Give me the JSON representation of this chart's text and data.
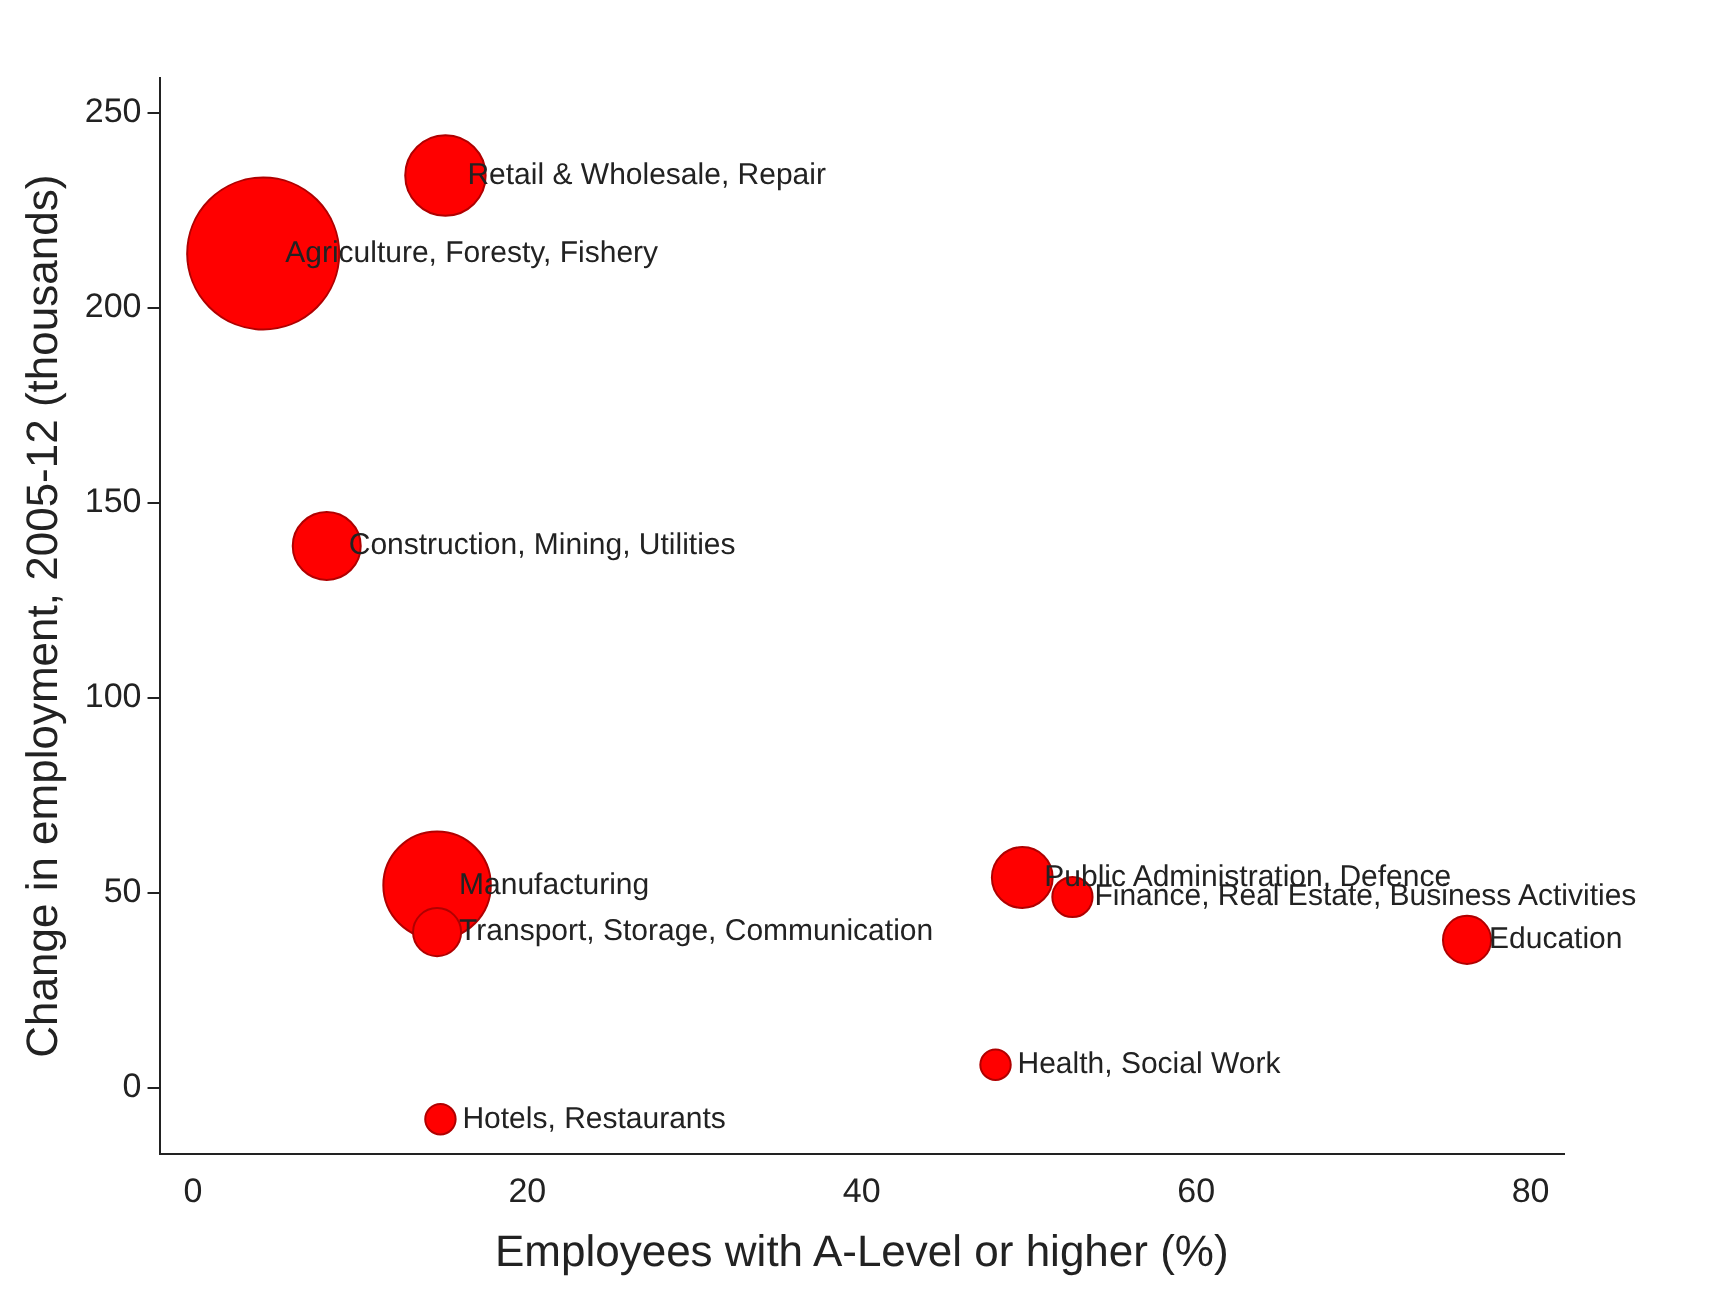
{
  "chart_data": {
    "type": "bubble",
    "xlabel": "Employees with A-Level or higher (%)",
    "ylabel": "Change in employment, 2005-12 (thousands)",
    "x": [
      15.1,
      4.2,
      8.0,
      14.6,
      14.6,
      14.8,
      49.6,
      52.6,
      48.0,
      76.2
    ],
    "series": [
      {
        "color": "#ff0000",
        "values": [
          234,
          214,
          139,
          52,
          40,
          -8,
          54,
          49,
          6,
          38
        ],
        "sizes": [
          0.28,
          1,
          0.2,
          0.5,
          0.1,
          0.04,
          0.16,
          0.07,
          0.04,
          0.1
        ]
      }
    ],
    "xlim": [
      -2,
      82
    ],
    "xticks": [
      0,
      20,
      40,
      60,
      80
    ],
    "ylim": [
      -17,
      259
    ],
    "yticks": [
      0,
      50,
      100,
      150,
      200,
      250
    ],
    "grid": false,
    "legend": false,
    "annotations": [
      {
        "text": "Retail & Wholesale, Repair",
        "x": 15.1,
        "y": 234
      },
      {
        "text": "Agriculture, Foresty, Fishery",
        "x": 4.2,
        "y": 214
      },
      {
        "text": "Construction, Mining, Utilities",
        "x": 8.0,
        "y": 139
      },
      {
        "text": "Manufacturing",
        "x": 14.6,
        "y": 52
      },
      {
        "text": "Transport, Storage, Communication",
        "x": 14.6,
        "y": 40
      },
      {
        "text": "Hotels, Restaurants",
        "x": 14.8,
        "y": -8
      },
      {
        "text": "Public Administration, Defence",
        "x": 49.6,
        "y": 54
      },
      {
        "text": "Finance, Real Estate, Business Activities",
        "x": 52.6,
        "y": 49
      },
      {
        "text": "Health, Social Work",
        "x": 48.0,
        "y": 6
      },
      {
        "text": "Education",
        "x": 76.2,
        "y": 38
      }
    ]
  }
}
